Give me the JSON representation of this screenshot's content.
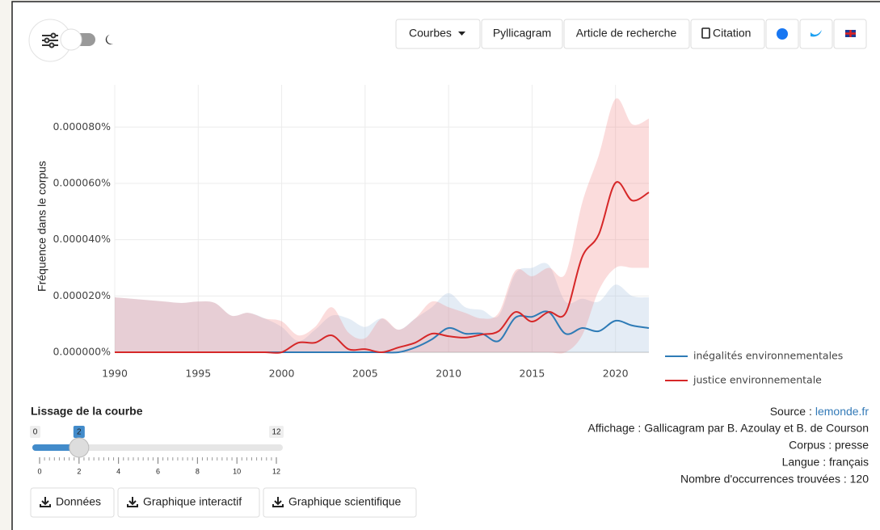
{
  "toolbar": {
    "buttons": [
      "Courbes",
      "Pyllicagram",
      "Article de recherche",
      "Citation"
    ]
  },
  "chart_data": {
    "type": "line",
    "y_label": "Fréquence dans le corpus",
    "x": [
      1990,
      1991,
      1992,
      1993,
      1994,
      1995,
      1996,
      1997,
      1998,
      1999,
      2000,
      2001,
      2002,
      2003,
      2004,
      2005,
      2006,
      2007,
      2008,
      2009,
      2010,
      2011,
      2012,
      2013,
      2014,
      2015,
      2016,
      2017,
      2018,
      2019,
      2020,
      2021,
      2022
    ],
    "xlim": [
      1990,
      2022
    ],
    "xticks": [
      1990,
      1995,
      2000,
      2005,
      2010,
      2015,
      2020
    ],
    "ylim": [
      0,
      9.5e-05
    ],
    "yticks": [
      {
        "value": 0,
        "label": "0.000000%"
      },
      {
        "value": 2e-05,
        "label": "0.000020%"
      },
      {
        "value": 4e-05,
        "label": "0.000040%"
      },
      {
        "value": 6e-05,
        "label": "0.000060%"
      },
      {
        "value": 8e-05,
        "label": "0.000080%"
      }
    ],
    "grid": true,
    "legend": "bottom-right",
    "series": [
      {
        "name": "inégalités environnementales",
        "color": "#2e7bb6",
        "band_color": "rgba(170,195,225,0.32)",
        "values": [
          0,
          0,
          0,
          0,
          0,
          0,
          0,
          0,
          0,
          0,
          0,
          0,
          0,
          0,
          0,
          0,
          0,
          0,
          1.7e-06,
          4.6e-06,
          8.6e-06,
          6.6e-06,
          6.6e-06,
          4e-06,
          1.23e-05,
          1.26e-05,
          1.43e-05,
          6.6e-06,
          8.6e-06,
          7.5e-06,
          1.12e-05,
          9.5e-06,
          8.6e-06
        ],
        "upper": [
          1.95e-05,
          1.9e-05,
          1.85e-05,
          1.8e-05,
          1.75e-05,
          1.8e-05,
          1.75e-05,
          1.3e-05,
          1.4e-05,
          1.2e-05,
          9e-06,
          4e-06,
          8e-06,
          1.3e-05,
          1.2e-05,
          9e-06,
          1.2e-05,
          8e-06,
          1.2e-05,
          1.6e-05,
          2.1e-05,
          1.6e-05,
          1.5e-05,
          1.3e-05,
          2.8e-05,
          3e-05,
          3.1e-05,
          1.8e-05,
          1.9e-05,
          1.8e-05,
          2.4e-05,
          2e-05,
          1.95e-05
        ],
        "lower": [
          0,
          0,
          0,
          0,
          0,
          0,
          0,
          0,
          0,
          0,
          0,
          0,
          0,
          0,
          0,
          0,
          0,
          0,
          0,
          0,
          0,
          0,
          0,
          0,
          0,
          0,
          0,
          0,
          0,
          0,
          0,
          0,
          0
        ]
      },
      {
        "name": "justice environnementale",
        "color": "#d62728",
        "band_color": "rgba(240,130,130,0.28)",
        "values": [
          0,
          0,
          0,
          0,
          0,
          0,
          0,
          0,
          0,
          0,
          0,
          3.4e-06,
          3.4e-06,
          6e-06,
          1.1e-06,
          1.1e-06,
          0,
          1.7e-06,
          3.4e-06,
          6.6e-06,
          5.7e-06,
          5.2e-06,
          6.3e-06,
          7.5e-06,
          1.43e-05,
          1.09e-05,
          1.43e-05,
          1.38e-05,
          3.38e-05,
          4.19e-05,
          6.02e-05,
          5.39e-05,
          5.68e-05
        ],
        "upper": [
          1.95e-05,
          1.9e-05,
          1.85e-05,
          1.8e-05,
          1.75e-05,
          1.8e-05,
          1.75e-05,
          1.3e-05,
          1.4e-05,
          1.2e-05,
          1.1e-05,
          6e-06,
          9e-06,
          1.6e-05,
          7e-06,
          5e-06,
          1.2e-05,
          8e-06,
          1.2e-05,
          1.8e-05,
          1.6e-05,
          1.4e-05,
          1.2e-05,
          1.4e-05,
          2.9e-05,
          2.7e-05,
          3e-05,
          2.8e-05,
          5.3e-05,
          7e-05,
          9e-05,
          8.1e-05,
          8.3e-05
        ],
        "lower": [
          0,
          0,
          0,
          0,
          0,
          0,
          0,
          0,
          0,
          0,
          0,
          0,
          0,
          0,
          0,
          0,
          0,
          0,
          0,
          0,
          0,
          0,
          0,
          0,
          0,
          0,
          0,
          0,
          6e-06,
          2.2e-05,
          3e-05,
          3e-05,
          3e-05
        ]
      }
    ]
  },
  "smoothing": {
    "label": "Lissage de la courbe",
    "min": 0,
    "max": 12,
    "value": 2,
    "ticks": [
      0,
      2,
      4,
      6,
      8,
      10,
      12
    ]
  },
  "downloads": [
    "Données",
    "Graphique interactif",
    "Graphique scientifique"
  ],
  "info": {
    "source_label": "Source :",
    "source_link": "lemonde.fr",
    "lines": [
      "Affichage : Gallicagram par B. Azoulay et B. de Courson",
      "Corpus : presse",
      "Langue : français",
      "Nombre d'occurrences trouvées : 120"
    ]
  }
}
